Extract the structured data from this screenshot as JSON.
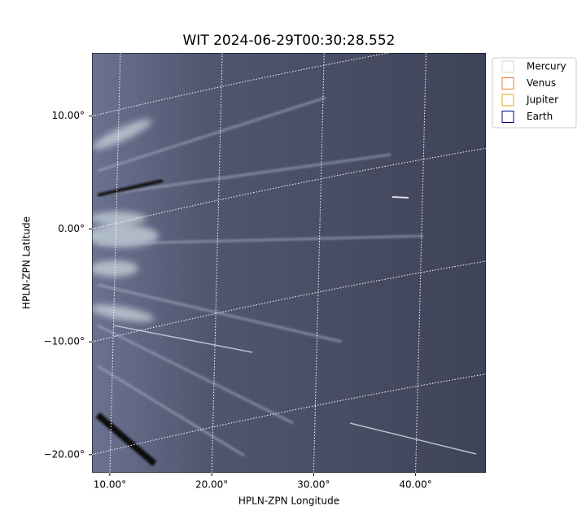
{
  "chart_data": {
    "type": "image",
    "title": "WIT 2024-06-29T00:30:28.552",
    "x_label": "HPLN-ZPN Longitude",
    "y_label": "HPLN-ZPN Latitude",
    "xlim": [
      8.25,
      46.9
    ],
    "ylim": [
      -21.6,
      15.6
    ],
    "xticks": [
      {
        "value": 10,
        "label": "10.00°"
      },
      {
        "value": 20,
        "label": "20.00°"
      },
      {
        "value": 30,
        "label": "30.00°"
      },
      {
        "value": 40,
        "label": "40.00°"
      }
    ],
    "yticks": [
      {
        "value": 10,
        "label": "10.00°"
      },
      {
        "value": 0,
        "label": "0.00°"
      },
      {
        "value": -10,
        "label": "−10.00°"
      },
      {
        "value": -20,
        "label": "−20.00°"
      }
    ],
    "grid": true,
    "legend": "upper right outside",
    "series": [
      {
        "name": "Mercury",
        "color": "#d9d9d9"
      },
      {
        "name": "Venus",
        "color": "#e07b39"
      },
      {
        "name": "Jupiter",
        "color": "#e6a817"
      },
      {
        "name": "Earth",
        "color": "#000080"
      }
    ]
  }
}
